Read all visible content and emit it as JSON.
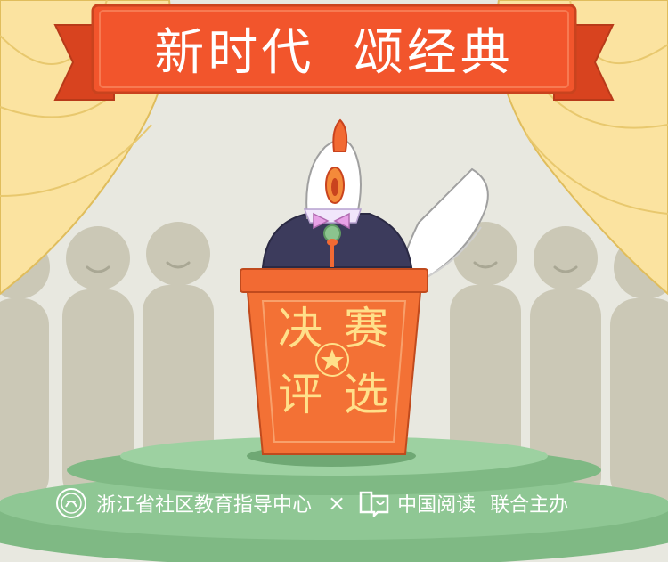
{
  "banner": {
    "title": "新时代  颂经典"
  },
  "podium": {
    "line1_left": "决",
    "line1_right": "赛",
    "line2_left": "评",
    "line2_right": "选"
  },
  "footer": {
    "organizer": "浙江省社区教育指导中心",
    "separator": "×",
    "partner": "中国阅读",
    "suffix": "联合主办"
  },
  "icons": [
    "zhejiang-community-education-emblem-icon",
    "china-reading-logo-icon",
    "star-icon"
  ],
  "colors": {
    "banner": "#f2552c",
    "curtain": "#fbe5a1",
    "podium": "#f26a33",
    "podium_text": "#ffe08a",
    "stage_green": "#8ec991",
    "audience": "#c8c5b3"
  }
}
